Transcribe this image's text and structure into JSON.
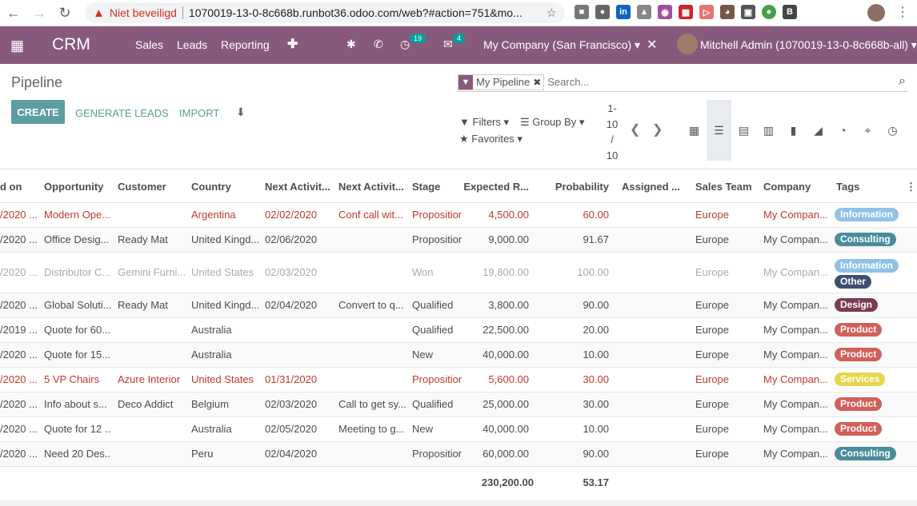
{
  "browser": {
    "warning_text": "Niet beveiligd",
    "url": "1070019-13-0-8c668b.runbot36.odoo.com/web?#action=751&mo..."
  },
  "topbar": {
    "app_name": "CRM",
    "menu": [
      "Sales",
      "Leads",
      "Reporting"
    ],
    "activity_count": "19",
    "message_count": "4",
    "company": "My Company (San Francisco)",
    "user": "Mitchell Admin (1070019-13-0-8c668b-all)"
  },
  "control": {
    "title": "Pipeline",
    "facet": "My Pipeline",
    "search_placeholder": "Search...",
    "create": "CREATE",
    "generate": "GENERATE LEADS",
    "import": "IMPORT",
    "filters": "Filters",
    "group_by": "Group By",
    "favorites": "Favorites",
    "pager": [
      "1-",
      "10",
      "/",
      "10"
    ]
  },
  "columns": [
    "d on",
    "Opportunity",
    "Customer",
    "Country",
    "Next Activit...",
    "Next Activit...",
    "Stage",
    "Expected R...",
    "Probability",
    "Assigned ...",
    "Sales Team",
    "Company",
    "Tags"
  ],
  "rows": [
    {
      "d": "/2020 ...",
      "opp": "Modern Ope...",
      "cust": "",
      "country": "Argentina",
      "date": "02/02/2020",
      "act": "Conf call wit...",
      "stage": "Proposition",
      "rev": "4,500.00",
      "prob": "60.00",
      "team": "Europe",
      "company": "My Compan...",
      "tags": [
        {
          "t": "Information",
          "c": "#8fc2e8"
        }
      ],
      "style": "red"
    },
    {
      "d": "/2020 ...",
      "opp": "Office Desig...",
      "cust": "Ready Mat",
      "country": "United Kingd...",
      "date": "02/06/2020",
      "act": "",
      "stage": "Proposition",
      "rev": "9,000.00",
      "prob": "91.67",
      "team": "Europe",
      "company": "My Compan...",
      "tags": [
        {
          "t": "Consulting",
          "c": "#4a8c9c"
        }
      ],
      "style": ""
    },
    {
      "d": "/2020 ...",
      "opp": "Distributor C...",
      "cust": "Gemini Furni...",
      "country": "United States",
      "date": "02/03/2020",
      "act": "",
      "stage": "Won",
      "rev": "19,800.00",
      "prob": "100.00",
      "team": "Europe",
      "company": "My Compan...",
      "tags": [
        {
          "t": "Information",
          "c": "#8fc2e8"
        },
        {
          "t": "Other",
          "c": "#3d4f6e"
        }
      ],
      "style": "muted"
    },
    {
      "d": "/2020 ...",
      "opp": "Global Soluti...",
      "cust": "Ready Mat",
      "country": "United Kingd...",
      "date": "02/04/2020",
      "act": "Convert to q...",
      "stage": "Qualified",
      "rev": "3,800.00",
      "prob": "90.00",
      "team": "Europe",
      "company": "My Compan...",
      "tags": [
        {
          "t": "Design",
          "c": "#7a3b56"
        }
      ],
      "style": ""
    },
    {
      "d": "/2019 ...",
      "opp": "Quote for 60...",
      "cust": "",
      "country": "Australia",
      "date": "",
      "act": "",
      "stage": "Qualified",
      "rev": "22,500.00",
      "prob": "20.00",
      "team": "Europe",
      "company": "My Compan...",
      "tags": [
        {
          "t": "Product",
          "c": "#d1605a"
        }
      ],
      "style": ""
    },
    {
      "d": "/2020 ...",
      "opp": "Quote for 15...",
      "cust": "",
      "country": "Australia",
      "date": "",
      "act": "",
      "stage": "New",
      "rev": "40,000.00",
      "prob": "10.00",
      "team": "Europe",
      "company": "My Compan...",
      "tags": [
        {
          "t": "Product",
          "c": "#d1605a"
        }
      ],
      "style": ""
    },
    {
      "d": "/2020 ...",
      "opp": "5 VP Chairs",
      "cust": "Azure Interior",
      "country": "United States",
      "date": "01/31/2020",
      "act": "",
      "stage": "Proposition",
      "rev": "5,600.00",
      "prob": "30.00",
      "team": "Europe",
      "company": "My Compan...",
      "tags": [
        {
          "t": "Services",
          "c": "#e6d64a"
        }
      ],
      "style": "red"
    },
    {
      "d": "/2020 ...",
      "opp": "Info about s...",
      "cust": "Deco Addict",
      "country": "Belgium",
      "date": "02/03/2020",
      "act": "Call to get sy...",
      "stage": "Qualified",
      "rev": "25,000.00",
      "prob": "30.00",
      "team": "Europe",
      "company": "My Compan...",
      "tags": [
        {
          "t": "Product",
          "c": "#d1605a"
        }
      ],
      "style": ""
    },
    {
      "d": "/2020 ...",
      "opp": "Quote for 12 ...",
      "cust": "",
      "country": "Australia",
      "date": "02/05/2020",
      "act": "Meeting to g...",
      "stage": "New",
      "rev": "40,000.00",
      "prob": "10.00",
      "team": "Europe",
      "company": "My Compan...",
      "tags": [
        {
          "t": "Product",
          "c": "#d1605a"
        }
      ],
      "style": ""
    },
    {
      "d": "/2020 ...",
      "opp": "Need 20 Des...",
      "cust": "",
      "country": "Peru",
      "date": "02/04/2020",
      "act": "",
      "stage": "Proposition",
      "rev": "60,000.00",
      "prob": "90.00",
      "team": "Europe",
      "company": "My Compan...",
      "tags": [
        {
          "t": "Consulting",
          "c": "#4a8c9c"
        }
      ],
      "style": ""
    }
  ],
  "totals": {
    "rev": "230,200.00",
    "prob": "53.17"
  }
}
